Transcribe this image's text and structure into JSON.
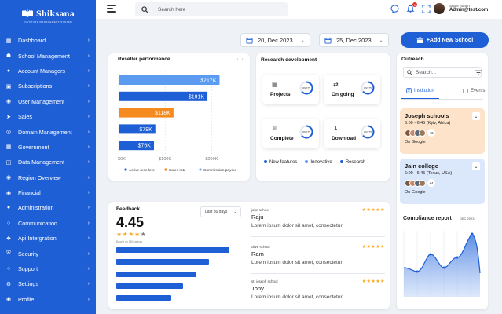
{
  "brand": {
    "name": "Shiksana",
    "tagline": "INSTITUTE MANAGEMENT SYSTEM"
  },
  "sidebar": {
    "items": [
      {
        "label": "Dashboard",
        "icon": "grid-icon"
      },
      {
        "label": "School Management",
        "icon": "school-icon"
      },
      {
        "label": "Account Managers",
        "icon": "person-icon"
      },
      {
        "label": "Subscriptions",
        "icon": "wallet-icon"
      },
      {
        "label": "User Management",
        "icon": "users-icon"
      },
      {
        "label": "Sales",
        "icon": "megaphone-icon"
      },
      {
        "label": "Domain Management",
        "icon": "globe-icon"
      },
      {
        "label": "Government",
        "icon": "building-icon"
      },
      {
        "label": "Data Management",
        "icon": "database-icon"
      },
      {
        "label": "Region Overview",
        "icon": "pin-icon"
      },
      {
        "label": "Financial",
        "icon": "money-icon"
      },
      {
        "label": "Administration",
        "icon": "admin-icon"
      },
      {
        "label": "Communication",
        "icon": "chat-icon"
      },
      {
        "label": "Api Intergration",
        "icon": "api-icon"
      },
      {
        "label": "Security",
        "icon": "shield-icon"
      },
      {
        "label": "Support",
        "icon": "headset-icon"
      },
      {
        "label": "Settings",
        "icon": "gear-icon"
      },
      {
        "label": "Profile",
        "icon": "user-circle-icon"
      }
    ]
  },
  "header": {
    "search_placeholder": "Search here",
    "notification_count": "1",
    "user_role": "Super Admin",
    "user_email": "Admin@test.com"
  },
  "dates": {
    "start": "20, Dec 2023",
    "end": "25, Dec 2023"
  },
  "add_button": "+Add New School",
  "reseller": {
    "title": "Reseller performance",
    "legend": [
      "Active resellers",
      "Sales rate",
      "Commission payout"
    ],
    "legend_colors": [
      "#1e5fd6",
      "#f58a1f",
      "#7aa7ee"
    ]
  },
  "chart_data": {
    "type": "bar",
    "orientation": "horizontal",
    "categories": [
      "",
      "",
      "",
      "",
      ""
    ],
    "values": [
      217,
      191,
      118,
      79,
      76
    ],
    "value_labels": [
      "$217K",
      "$191K",
      "$118K",
      "$79K",
      "$76K"
    ],
    "bar_colors": [
      "#5b9bf0",
      "#1e5fd6",
      "#f58a1f",
      "#1e5fd6",
      "#1e5fd6"
    ],
    "x_ticks": [
      "$0K",
      "$100K",
      "$200K"
    ],
    "xlim": [
      0,
      250
    ],
    "grid": true,
    "legend_position": "bottom"
  },
  "research": {
    "title": "Research development",
    "tiles": [
      {
        "label": "Projects",
        "icon": "document-icon",
        "ring": "80/125"
      },
      {
        "label": "On going",
        "icon": "arrows-icon",
        "ring": "80/125"
      },
      {
        "label": "Complete",
        "icon": "trophy-icon",
        "ring": "80/125"
      },
      {
        "label": "Download",
        "icon": "download-icon",
        "ring": "80/125"
      }
    ],
    "ring_fraction": 0.64,
    "legend": [
      "New features",
      "Innovative",
      "Research"
    ],
    "legend_colors": [
      "#1e5fd6",
      "#5b9bf0",
      "#1e5fd6"
    ]
  },
  "outreach": {
    "title": "Outreach",
    "search_placeholder": "Search...",
    "tabs": [
      "Institution",
      "Events"
    ],
    "schools": [
      {
        "name": "Joseph schools",
        "time": "6:00 - 6:45 (Kyiv, Africa)",
        "extra": "+3",
        "venue": "On Google",
        "bg": "#fde3c9"
      },
      {
        "name": "Jain college",
        "time": "6:00 - 6:45 (Texus, USA)",
        "extra": "+4",
        "venue": "On Google",
        "bg": "#dbe7fb"
      }
    ],
    "compliance_title": "Compliance report",
    "compliance_period": "DEC 2023"
  },
  "feedback": {
    "title": "Feedback",
    "score": "4.45",
    "rating_stars": 4,
    "note": "Based on 150 ratings",
    "period": "Last 30 days",
    "bars": [
      0.9,
      0.74,
      0.64,
      0.53,
      0.44
    ],
    "reviews": [
      {
        "school": "john school",
        "name": "Raju",
        "text": "Lorem ipsum dolor sit amet, consectetur",
        "stars": 5
      },
      {
        "school": "olive school",
        "name": "Ram",
        "text": "Lorem ipsum dolor sit amet, consectetur",
        "stars": 5
      },
      {
        "school": "st. joseph school",
        "name": "Tony",
        "text": "Lorem ipsum dolor sit amet, consectetur",
        "stars": 5
      }
    ]
  }
}
